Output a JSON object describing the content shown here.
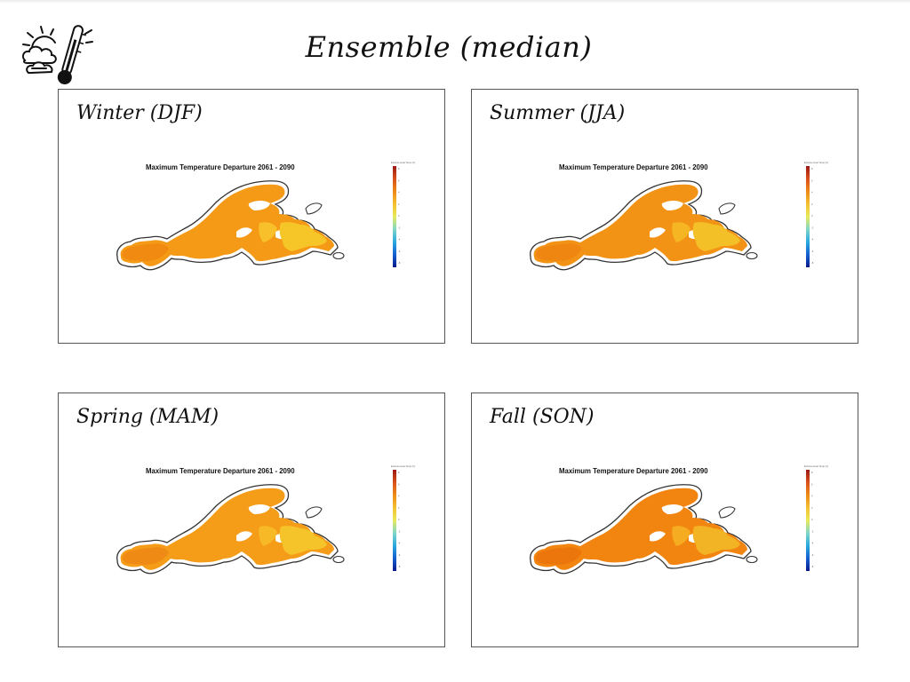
{
  "slide": {
    "title": "Ensemble (median)",
    "logo_icon": "weather-thermometer-icon"
  },
  "panels": [
    {
      "id": "winter",
      "label": "Winter (DJF)",
      "map_title": "Maximum Temperature Departure 2061 - 2090",
      "legend_label": "Extreme Heat Temp (C)",
      "fill_colors": {
        "main": "#f59a16",
        "warm_patch": "#f08a10",
        "cool_patch": "#f8c12c",
        "east": "#f6c528"
      }
    },
    {
      "id": "summer",
      "label": "Summer (JJA)",
      "map_title": "Maximum Temperature Departure 2061 - 2090",
      "legend_label": "Extreme Heat Temp (C)",
      "fill_colors": {
        "main": "#f39316",
        "warm_patch": "#ef8612",
        "cool_patch": "#f6b523",
        "east": "#f4c028"
      }
    },
    {
      "id": "spring",
      "label": "Spring (MAM)",
      "map_title": "Maximum Temperature Departure 2061 - 2090",
      "legend_label": "Extreme Heat Temp (C)",
      "fill_colors": {
        "main": "#f59c18",
        "warm_patch": "#ef8a14",
        "cool_patch": "#f7b925",
        "east": "#f5c42a"
      }
    },
    {
      "id": "fall",
      "label": "Fall (SON)",
      "map_title": "Maximum Temperature Departure 2061 - 2090",
      "legend_label": "Extreme Heat Temp (C)",
      "fill_colors": {
        "main": "#f28410",
        "warm_patch": "#ec760c",
        "cool_patch": "#f5ac20",
        "east": "#f2b424"
      }
    }
  ],
  "legend": {
    "ticks": [
      "8",
      "6",
      "4",
      "2",
      "0",
      "-2",
      "-4",
      "-6",
      "-8"
    ],
    "colors": [
      "#0a1a8c",
      "#1460d0",
      "#2aa8e0",
      "#7fd6c8",
      "#e8ea5a",
      "#f4c030",
      "#ee8a18",
      "#d8501a",
      "#9a1a14"
    ]
  }
}
